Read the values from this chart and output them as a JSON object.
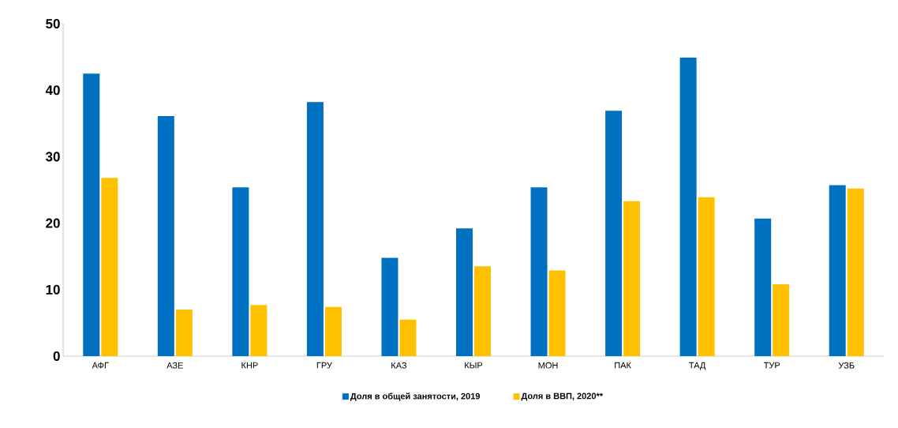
{
  "chart_data": {
    "type": "bar",
    "categories": [
      "АФГ",
      "АЗЕ",
      "КНР",
      "ГРУ",
      "КАЗ",
      "КЫР",
      "МОН",
      "ПАК",
      "ТАД",
      "ТУР",
      "УЗБ"
    ],
    "series": [
      {
        "name": "Доля в общей занятости, 2019",
        "color": "#0070c0",
        "values": [
          42.5,
          36.1,
          25.4,
          38.2,
          14.8,
          19.2,
          25.4,
          36.9,
          44.9,
          20.7,
          25.7
        ]
      },
      {
        "name": "Доля в ВВП, 2020**",
        "color": "#ffc000",
        "values": [
          26.8,
          7.0,
          7.7,
          7.4,
          5.5,
          13.5,
          12.9,
          23.3,
          23.9,
          10.8,
          25.2
        ]
      }
    ],
    "ylim": [
      0,
      50
    ],
    "yticks": [
      0,
      10,
      20,
      30,
      40,
      50
    ],
    "grid": false,
    "legend": "bottom"
  }
}
